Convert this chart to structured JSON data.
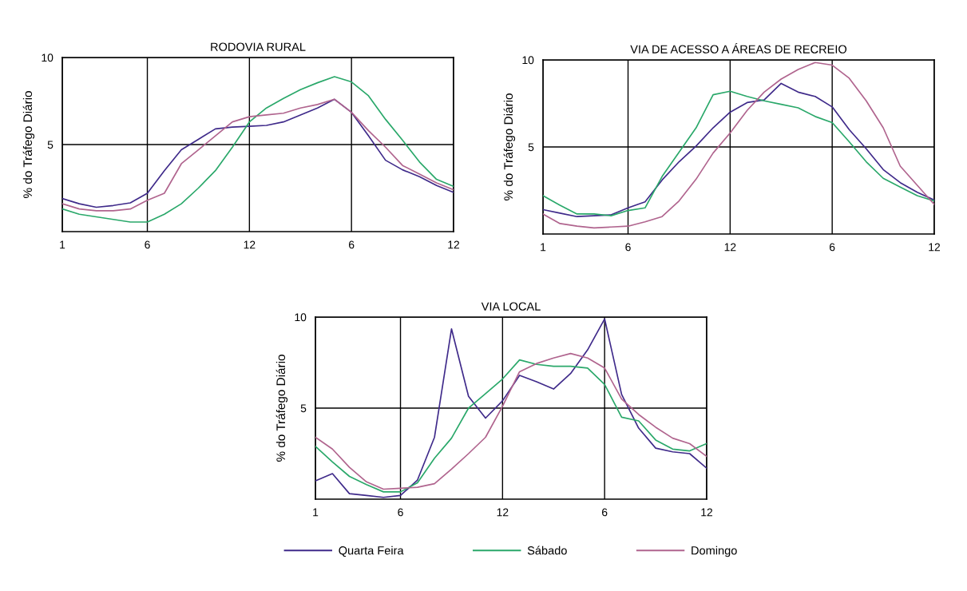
{
  "chart_data": [
    {
      "type": "line",
      "title": "RODOVIA RURAL",
      "ylabel": "% do Tráfego Diário",
      "categories": [
        "1",
        null,
        null,
        null,
        null,
        "6",
        null,
        null,
        null,
        null,
        null,
        "12",
        null,
        null,
        null,
        null,
        null,
        "6",
        null,
        null,
        null,
        null,
        null,
        "12"
      ],
      "ylim": [
        0,
        10
      ],
      "yticks": [
        5,
        10
      ],
      "grid": true,
      "series": [
        {
          "color": "#3f2a8a",
          "values": [
            1.9,
            1.6,
            1.4,
            1.5,
            1.65,
            2.2,
            3.5,
            4.7,
            5.3,
            5.9,
            6.0,
            6.05,
            6.1,
            6.3,
            6.7,
            7.1,
            7.6,
            6.85,
            5.5,
            4.1,
            3.55,
            3.15,
            2.65,
            2.25
          ]
        },
        {
          "color": "#2aa86a",
          "values": [
            1.3,
            1.0,
            0.85,
            0.7,
            0.55,
            0.55,
            1.0,
            1.6,
            2.5,
            3.5,
            4.85,
            6.3,
            7.1,
            7.65,
            8.15,
            8.55,
            8.9,
            8.6,
            7.8,
            6.45,
            5.25,
            4.0,
            3.0,
            2.6
          ]
        },
        {
          "color": "#b0648e",
          "values": [
            1.6,
            1.3,
            1.2,
            1.2,
            1.3,
            1.8,
            2.2,
            3.9,
            4.7,
            5.5,
            6.3,
            6.6,
            6.7,
            6.8,
            7.1,
            7.3,
            7.6,
            6.85,
            5.8,
            4.85,
            3.8,
            3.3,
            2.8,
            2.4
          ]
        }
      ]
    },
    {
      "type": "line",
      "title": "VIA DE ACESSO A ÁREAS DE RECREIO",
      "ylabel": "% do Tráfego Diário",
      "categories": [
        "1",
        null,
        null,
        null,
        null,
        "6",
        null,
        null,
        null,
        null,
        null,
        "12",
        null,
        null,
        null,
        null,
        null,
        "6",
        null,
        null,
        null,
        null,
        null,
        "12"
      ],
      "ylim": [
        0,
        10
      ],
      "yticks": [
        5,
        10
      ],
      "grid": true,
      "series": [
        {
          "color": "#3f2a8a",
          "values": [
            1.4,
            1.2,
            1.0,
            1.05,
            1.1,
            1.5,
            1.85,
            3.1,
            4.15,
            5.05,
            6.1,
            7.0,
            7.55,
            7.7,
            8.65,
            8.15,
            7.9,
            7.3,
            6.0,
            4.9,
            3.7,
            2.95,
            2.4,
            1.95
          ]
        },
        {
          "color": "#2aa86a",
          "values": [
            2.2,
            1.65,
            1.15,
            1.15,
            1.05,
            1.35,
            1.5,
            3.3,
            4.7,
            6.1,
            8.0,
            8.2,
            7.9,
            7.65,
            7.45,
            7.25,
            6.75,
            6.4,
            5.3,
            4.15,
            3.2,
            2.7,
            2.2,
            1.9
          ]
        },
        {
          "color": "#b0648e",
          "values": [
            1.15,
            0.6,
            0.45,
            0.35,
            0.4,
            0.45,
            0.7,
            1.0,
            1.9,
            3.15,
            4.65,
            5.8,
            7.1,
            8.15,
            8.9,
            9.45,
            9.85,
            9.7,
            8.95,
            7.65,
            6.1,
            3.9,
            2.8,
            1.7
          ]
        }
      ]
    },
    {
      "type": "line",
      "title": "VIA LOCAL",
      "ylabel": "% do Tráfego Diário",
      "categories": [
        "1",
        null,
        null,
        null,
        null,
        "6",
        null,
        null,
        null,
        null,
        null,
        "12",
        null,
        null,
        null,
        null,
        null,
        "6",
        null,
        null,
        null,
        null,
        null,
        "12"
      ],
      "ylim": [
        0,
        10
      ],
      "yticks": [
        5,
        10
      ],
      "grid": true,
      "legend": "bottom",
      "series": [
        {
          "name": "Quarta Feira",
          "color": "#3f2a8a",
          "values": [
            1.0,
            1.4,
            0.3,
            0.2,
            0.1,
            0.2,
            1.05,
            3.4,
            9.35,
            5.65,
            4.45,
            5.4,
            6.8,
            6.45,
            6.05,
            6.9,
            8.2,
            9.9,
            5.75,
            3.9,
            2.8,
            2.6,
            2.5,
            1.7
          ]
        },
        {
          "name": "Sábado",
          "color": "#2aa86a",
          "values": [
            2.9,
            2.05,
            1.25,
            0.8,
            0.4,
            0.4,
            0.9,
            2.25,
            3.35,
            5.0,
            5.8,
            6.6,
            7.65,
            7.4,
            7.3,
            7.3,
            7.2,
            6.3,
            4.5,
            4.3,
            3.25,
            2.75,
            2.65,
            3.05
          ]
        },
        {
          "name": "Domingo",
          "color": "#b0648e",
          "values": [
            3.4,
            2.75,
            1.75,
            0.95,
            0.55,
            0.6,
            0.65,
            0.85,
            1.65,
            2.5,
            3.4,
            5.1,
            7.0,
            7.45,
            7.75,
            8.0,
            7.75,
            7.2,
            5.5,
            4.65,
            3.95,
            3.35,
            3.05,
            2.35
          ]
        }
      ]
    }
  ]
}
